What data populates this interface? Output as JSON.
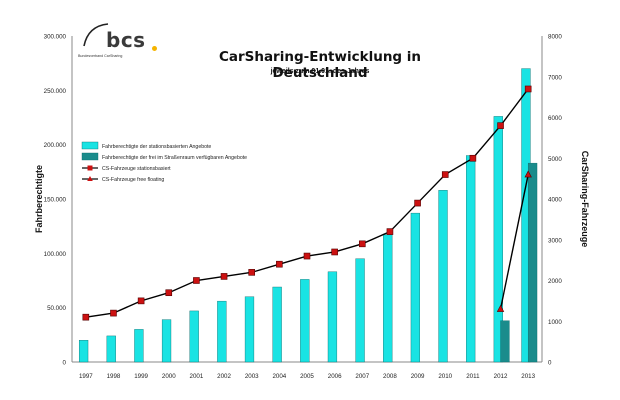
{
  "logo": {
    "brand": "bcs",
    "tagline": "Bundesverband CarSharing"
  },
  "chart_data": {
    "type": "bar",
    "title": "CarSharing-Entwicklung in Deutschland",
    "subtitle": "jeweils zum 01.01. des Jahres",
    "ylabel": "Fahrberechtigte",
    "y2label": "CarSharing-Fahrzeuge",
    "ylim": [
      0,
      300000
    ],
    "y2lim": [
      0,
      8000
    ],
    "yticks": [
      "0",
      "50.000",
      "100.000",
      "150.000",
      "200.000",
      "250.000",
      "300.000"
    ],
    "y2ticks": [
      "0",
      "1000",
      "2000",
      "3000",
      "4000",
      "5000",
      "6000",
      "7000",
      "8000"
    ],
    "categories": [
      "1997",
      "1998",
      "1999",
      "2000",
      "2001",
      "2002",
      "2003",
      "2004",
      "2005",
      "2006",
      "2007",
      "2008",
      "2009",
      "2010",
      "2011",
      "2012",
      "2013"
    ],
    "grid": false,
    "legend_position": "left",
    "series": [
      {
        "name": "Fahrberechtigte der stationsbasierten Angebote",
        "kind": "bar",
        "axis": "left",
        "color": "#19e3e3",
        "values": [
          20000,
          24000,
          30000,
          39000,
          47000,
          56000,
          60000,
          69000,
          76000,
          83000,
          95000,
          117000,
          137000,
          158000,
          190000,
          226000,
          270000
        ]
      },
      {
        "name": "Fahrberechtigte der frei im Straßenraum verfügbaren Angebote",
        "kind": "bar",
        "axis": "left",
        "color": "#1a8c8c",
        "values": [
          null,
          null,
          null,
          null,
          null,
          null,
          null,
          null,
          null,
          null,
          null,
          null,
          null,
          null,
          null,
          38000,
          183000
        ]
      },
      {
        "name": "CS-Fahrzeuge stationsbasiert",
        "kind": "line",
        "axis": "right",
        "color": "#000000",
        "marker": "square",
        "marker_color": "#cc1111",
        "values": [
          1100,
          1200,
          1500,
          1700,
          2000,
          2100,
          2200,
          2400,
          2600,
          2700,
          2900,
          3200,
          3900,
          4600,
          5000,
          5800,
          6700
        ]
      },
      {
        "name": "CS-Fahrzeuge free floating",
        "kind": "line",
        "axis": "right",
        "color": "#000000",
        "marker": "triangle",
        "marker_color": "#cc1111",
        "values": [
          null,
          null,
          null,
          null,
          null,
          null,
          null,
          null,
          null,
          null,
          null,
          null,
          null,
          null,
          null,
          1300,
          4600
        ]
      }
    ]
  }
}
